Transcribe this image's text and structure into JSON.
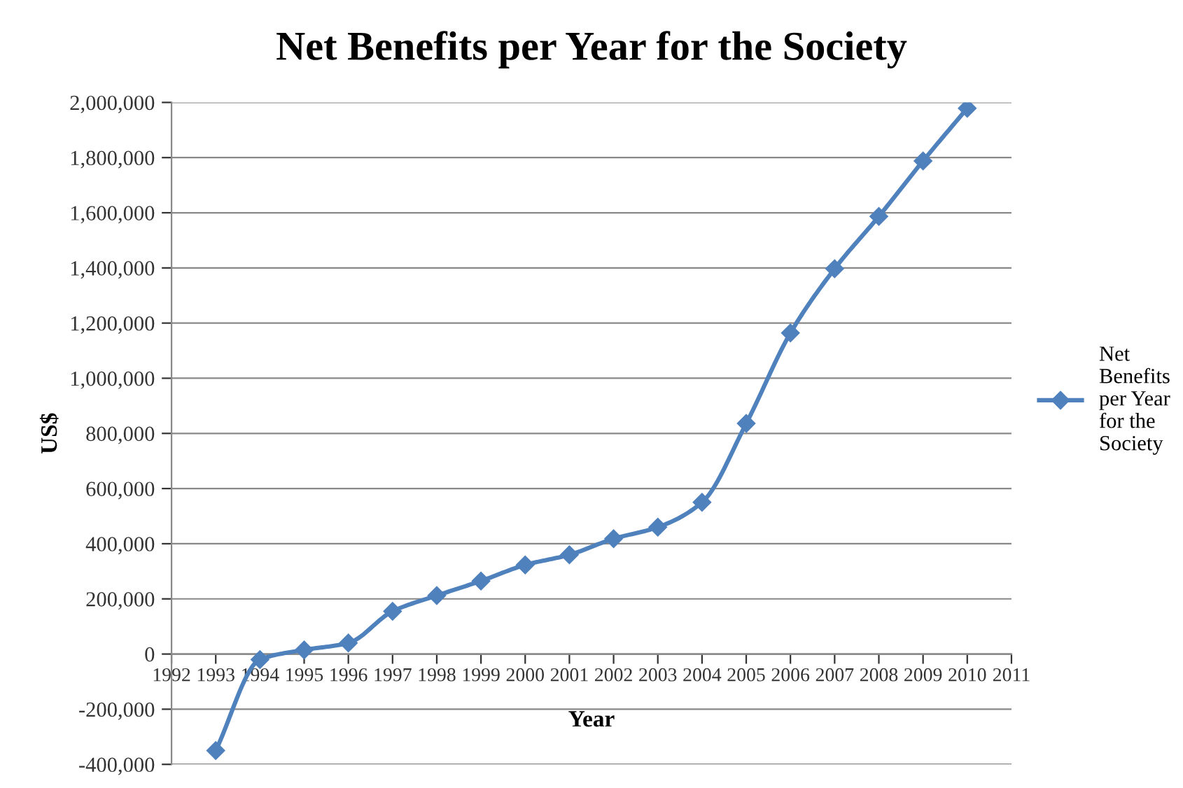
{
  "chart_data": {
    "type": "line",
    "title": "Net Benefits per Year for the Society",
    "xlabel": "Year",
    "ylabel": "US$",
    "x": [
      1993,
      1994,
      1995,
      1996,
      1997,
      1998,
      1999,
      2000,
      2001,
      2002,
      2003,
      2004,
      2005,
      2006,
      2007,
      2008,
      2009,
      2010
    ],
    "series": [
      {
        "name": "Net Benefits per Year for the Society",
        "color": "#4f81bd",
        "values": [
          -350000,
          -20000,
          15000,
          40000,
          155000,
          212000,
          265000,
          323000,
          360000,
          418000,
          460000,
          550000,
          836000,
          1164000,
          1397000,
          1587000,
          1788000,
          1979000
        ]
      }
    ],
    "xlim": [
      1992,
      2011
    ],
    "xticks": [
      1992,
      1993,
      1994,
      1995,
      1996,
      1997,
      1998,
      1999,
      2000,
      2001,
      2002,
      2003,
      2004,
      2005,
      2006,
      2007,
      2008,
      2009,
      2010,
      2011
    ],
    "ylim": [
      -400000,
      2000000
    ],
    "yticks": [
      {
        "value": -400000,
        "label": "-400,000"
      },
      {
        "value": -200000,
        "label": "-200,000"
      },
      0,
      {
        "value": 200000,
        "label": "200,000"
      },
      {
        "value": 400000,
        "label": "400,000"
      },
      {
        "value": 600000,
        "label": "600,000"
      },
      {
        "value": 800000,
        "label": "800,000"
      },
      {
        "value": 1000000,
        "label": "1,000,000"
      },
      {
        "value": 1200000,
        "label": "1,200,000"
      },
      {
        "value": 1400000,
        "label": "1,400,000"
      },
      {
        "value": 1600000,
        "label": "1,600,000"
      },
      {
        "value": 1800000,
        "label": "1,800,000"
      },
      {
        "value": 2000000,
        "label": "2,000,000"
      }
    ],
    "grid": "y",
    "legend": "right",
    "marker": "diamond",
    "line_style": "solid"
  }
}
